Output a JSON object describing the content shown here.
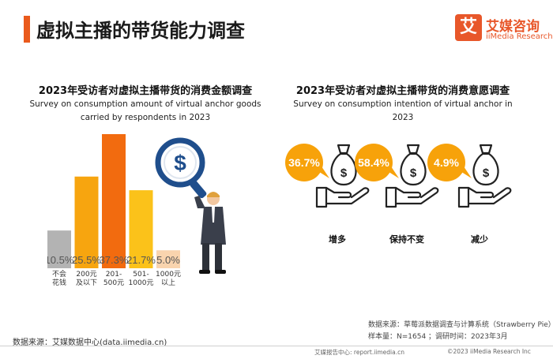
{
  "header": {
    "title": "虚拟主播的带货能力调查",
    "logo_mark": "艾",
    "logo_cn": "艾媒咨询",
    "logo_en": "iiMedia Research"
  },
  "left_chart": {
    "title": "2023年受访者对虚拟主播带货的消费金额调查",
    "subtitle_line1": "Survey on consumption amount of virtual anchor goods",
    "subtitle_line2": "carried by respondents in 2023"
  },
  "right_chart": {
    "title": "2023年受访者对虚拟主播带货的消费意愿调查",
    "subtitle": "Survey on consumption intention of virtual anchor in 2023"
  },
  "chart_data": [
    {
      "type": "bar",
      "title": "2023年受访者对虚拟主播带货的消费金额调查",
      "categories": [
        [
          "不会",
          "花钱"
        ],
        [
          "200元",
          "及以下"
        ],
        [
          "201-",
          "500元"
        ],
        [
          "501-",
          "1000元"
        ],
        [
          "1000元",
          "以上"
        ]
      ],
      "values": [
        10.5,
        25.5,
        37.3,
        21.7,
        5.0
      ],
      "value_labels": [
        "10.5%",
        "25.5%",
        "37.3%",
        "21.7%",
        "5.0%"
      ],
      "unit": "%",
      "colors": [
        "#b3b3b3",
        "#f7a50f",
        "#f26b0f",
        "#fbc21a",
        "#f9d4ae"
      ],
      "ylim": [
        0,
        40
      ]
    },
    {
      "type": "bubble",
      "title": "2023年受访者对虚拟主播带货的消费意愿调查",
      "categories": [
        "增多",
        "保持不变",
        "减少"
      ],
      "values": [
        36.7,
        58.4,
        4.9
      ],
      "value_labels": [
        "36.7%",
        "58.4%",
        "4.9%"
      ],
      "unit": "%",
      "color": "#f7a20a"
    }
  ],
  "source_right": {
    "line1": "数据来源：草莓派数据调查与计算系统（Strawberry Pie）",
    "line2": "样本量：N=1654 ；调研时间：2023年3月"
  },
  "source_left": "数据来源：艾媒数据中心(data.iimedia.cn)",
  "footer": {
    "report": "艾媒报告中心: report.iimedia.cn",
    "copyright": "©2023  iiMedia Research  Inc"
  },
  "icons": [
    "magnifier-dollar-icon",
    "businessman-icon",
    "money-bag-hand-icon"
  ]
}
